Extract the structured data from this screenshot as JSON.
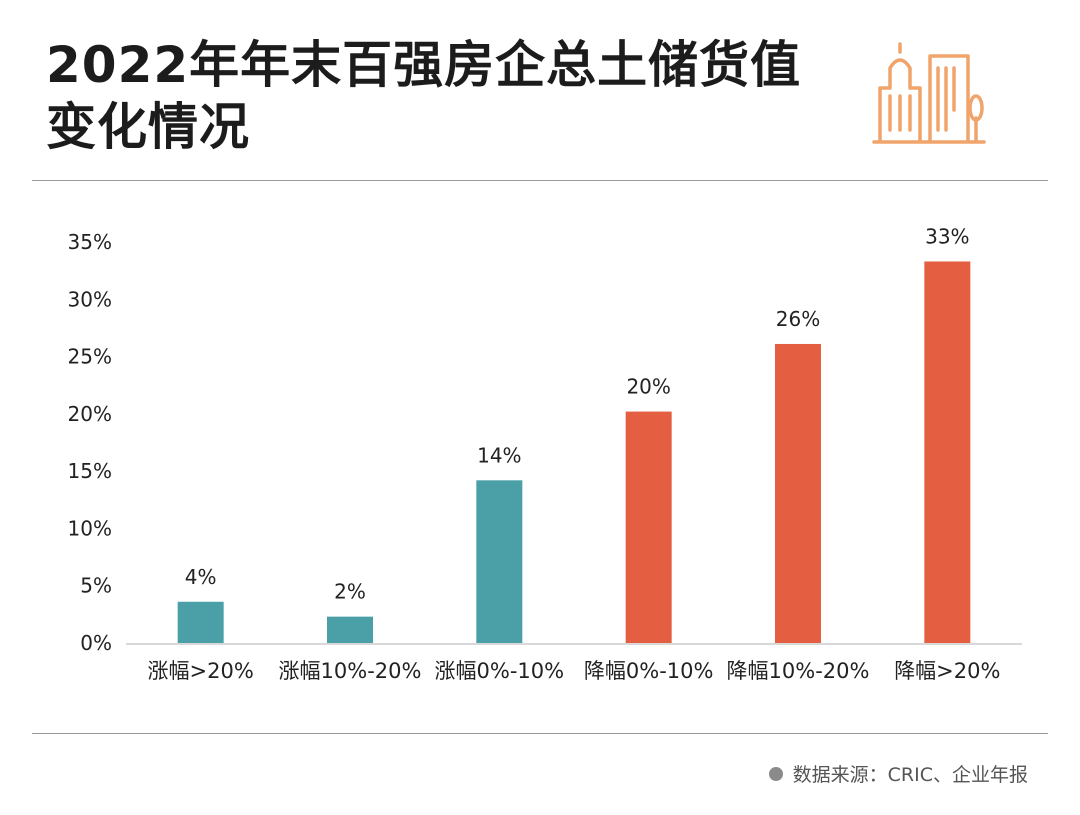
{
  "header": {
    "title_line1": "2022年年末百强房企总土储货值",
    "title_line2": "变化情况"
  },
  "logo": {
    "icon": "city-buildings-icon",
    "color": "#f0a46b"
  },
  "footer": {
    "source_text": "数据来源：CRIC、企业年报",
    "bullet_icon": "dot-icon"
  },
  "colors": {
    "rise": "#4aa0a6",
    "fall": "#e45f41",
    "axis": "#cccccc"
  },
  "chart_data": {
    "type": "bar",
    "categories": [
      "涨幅>20%",
      "涨幅10%-20%",
      "涨幅0%-10%",
      "降幅0%-10%",
      "降幅10%-20%",
      "降幅>20%"
    ],
    "values": [
      4,
      2,
      14,
      20,
      26,
      33
    ],
    "bar_values_estimated": [
      3.6,
      2.3,
      14.2,
      20.2,
      26.1,
      33.3
    ],
    "data_labels": [
      "4%",
      "2%",
      "14%",
      "20%",
      "26%",
      "33%"
    ],
    "bar_colors": [
      "#4aa0a6",
      "#4aa0a6",
      "#4aa0a6",
      "#e45f41",
      "#e45f41",
      "#e45f41"
    ],
    "yticks": [
      "0%",
      "5%",
      "10%",
      "15%",
      "20%",
      "25%",
      "30%",
      "35%"
    ],
    "ylim": [
      0,
      35
    ],
    "grid": false,
    "title": "",
    "xlabel": "",
    "ylabel": ""
  }
}
